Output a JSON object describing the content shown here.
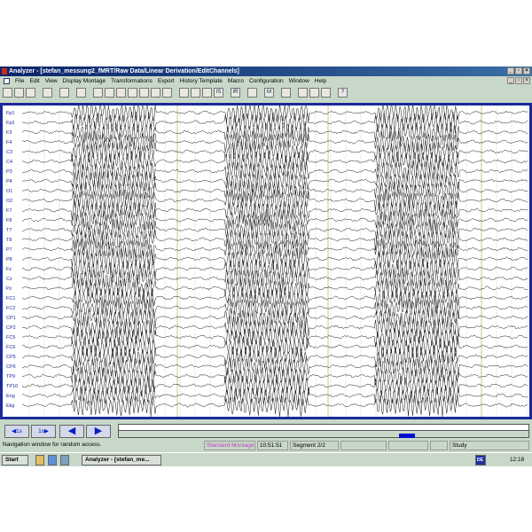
{
  "window": {
    "title": "Analyzer - [stefan_messung2_fMRT/Raw Data/Linear Derivation/EditChannels]",
    "controls": [
      "_",
      "▫",
      "×"
    ]
  },
  "menu": [
    "File",
    "Edit",
    "View",
    "Display Montage",
    "Transformations",
    "Export",
    "History Template",
    "Macro",
    "Configuration",
    "Window",
    "Help"
  ],
  "toolbar": [
    "new",
    "open",
    "save",
    "copy",
    "print",
    "filter",
    "zoom-out",
    "zoom-in",
    "scale",
    "baseline",
    "grid",
    "down",
    "up",
    "wave",
    "compress",
    "marker",
    "IS",
    "IR",
    "grid-view",
    "M",
    "split",
    "montage",
    "layout1",
    "layout2",
    "help"
  ],
  "toolbar_text": {
    "IS": "IS",
    "IR": "IR",
    "M": "M",
    "help": "?"
  },
  "channels": [
    "Fp1",
    "Fp2",
    "F3",
    "F4",
    "C3",
    "C4",
    "P3",
    "P4",
    "O1",
    "O2",
    "F7",
    "F8",
    "T7",
    "T8",
    "P7",
    "P8",
    "Fz",
    "Cz",
    "Pz",
    "FC1",
    "FC2",
    "CP1",
    "CP2",
    "FC5",
    "FC6",
    "CP5",
    "CP6",
    "TP9",
    "TP10",
    "Eog",
    "Ekg"
  ],
  "nav": {
    "back_1s": "◀1s",
    "fwd_1s": "1s▶",
    "prev": "◀",
    "next": "▶",
    "position_fraction": 0.7
  },
  "status": {
    "message": "Navigation window for random access.",
    "montage": "Standard Montage",
    "time": "10:51:51",
    "segment": "Segment 2/2",
    "mode": "Study"
  },
  "taskbar": {
    "start": "Start",
    "task": "Analyzer - [stefan_me...",
    "lang": "DE",
    "clock": "12:18"
  },
  "colors": {
    "montage_text": "#c040c0",
    "frame": "#1a2a9a",
    "marker_line": "#c8b860"
  }
}
